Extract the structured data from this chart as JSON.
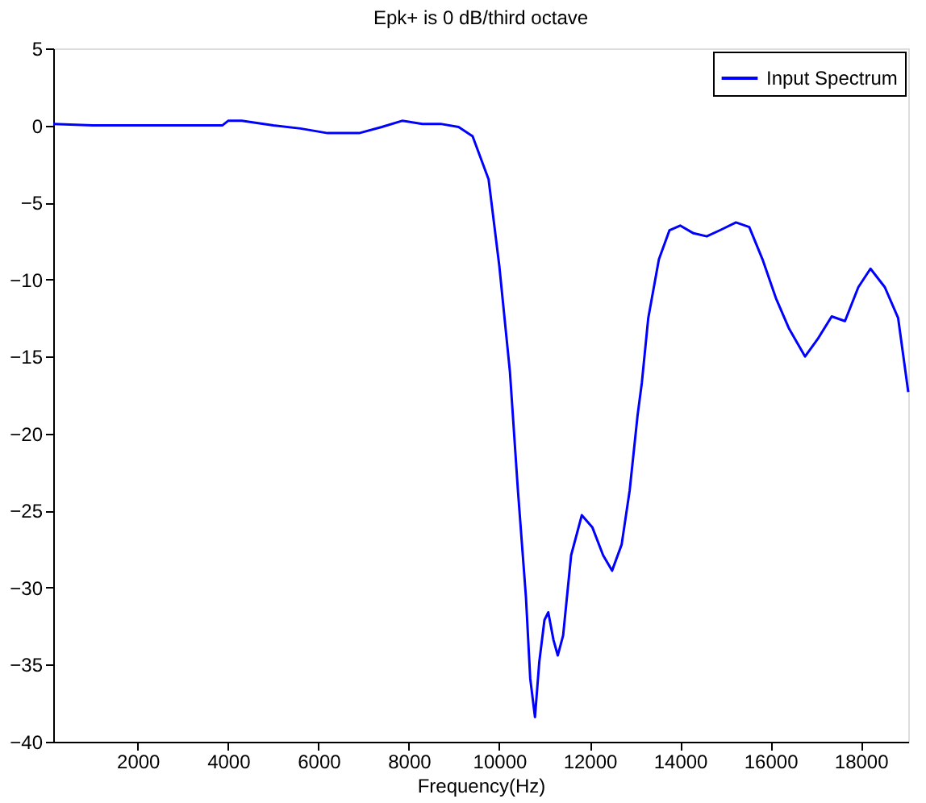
{
  "chart_data": {
    "type": "line",
    "title": "Epk+ is 0 dB/third octave",
    "xlabel": "Frequency(Hz)",
    "xlim": [
      130,
      19050
    ],
    "xticks": [
      2000,
      4000,
      6000,
      8000,
      10000,
      12000,
      14000,
      16000,
      18000
    ],
    "ylim": [
      -40,
      5
    ],
    "yticks": [
      5,
      0,
      -5,
      -10,
      -15,
      -20,
      -25,
      -30,
      -35,
      -40
    ],
    "grid": false,
    "legend": "top right",
    "line_style": "solid",
    "marker": "none",
    "series": [
      {
        "name": "Input Spectrum",
        "color": "#0000ff",
        "x": [
          130,
          1000,
          2000,
          3000,
          3870,
          4000,
          4300,
          5000,
          5600,
          6200,
          6900,
          7400,
          7850,
          8300,
          8700,
          9100,
          9410,
          9764,
          10000,
          10236,
          10413,
          10590,
          10685,
          10790,
          10886,
          11000,
          11084,
          11200,
          11295,
          11413,
          11590,
          11826,
          12062,
          12298,
          12496,
          12708,
          12885,
          13061,
          13155,
          13297,
          13532,
          13767,
          14003,
          14297,
          14591,
          14886,
          15238,
          15532,
          15826,
          16120,
          16414,
          16767,
          17060,
          17356,
          17650,
          17945,
          18214,
          18532,
          18826,
          19050
        ],
        "values": [
          0.1,
          0.0,
          0.0,
          0.0,
          0.0,
          0.3,
          0.3,
          0.0,
          -0.2,
          -0.5,
          -0.5,
          -0.1,
          0.3,
          0.1,
          0.1,
          -0.1,
          -0.7,
          -3.5,
          -9.1,
          -16.0,
          -23.7,
          -30.6,
          -35.9,
          -38.4,
          -34.8,
          -32.1,
          -31.6,
          -33.4,
          -34.4,
          -33.1,
          -27.9,
          -25.3,
          -26.1,
          -27.9,
          -28.9,
          -27.2,
          -23.7,
          -18.8,
          -16.7,
          -12.5,
          -8.7,
          -6.8,
          -6.5,
          -7.0,
          -7.2,
          -6.8,
          -6.3,
          -6.6,
          -8.7,
          -11.2,
          -13.2,
          -15.0,
          -13.8,
          -12.4,
          -12.7,
          -10.5,
          -9.3,
          -10.5,
          -12.5,
          -17.3
        ]
      }
    ]
  }
}
